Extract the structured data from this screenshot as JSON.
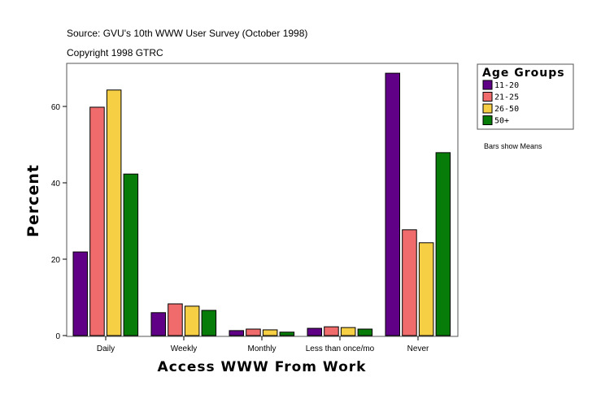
{
  "chart_data": {
    "type": "bar",
    "title": "Source: GVU's 10th WWW User Survey (October 1998)",
    "subtitle": "Copyright 1998 GTRC",
    "xlabel": "Access WWW From Work",
    "ylabel": "Percent",
    "ylim": [
      0,
      71
    ],
    "yticks": [
      0,
      20,
      40,
      60
    ],
    "grid": false,
    "legend_placement": "right",
    "legend_title": "Age Groups",
    "note": "Bars show Means",
    "categories": [
      "Daily",
      "Weekly",
      "Monthly",
      "Less than once/mo",
      "Never"
    ],
    "series": [
      {
        "name": "11-20",
        "color": "#5f0087",
        "values": [
          21.9,
          6.0,
          1.3,
          1.9,
          68.7
        ]
      },
      {
        "name": "21-25",
        "color": "#f06c6c",
        "values": [
          59.8,
          8.3,
          1.7,
          2.3,
          27.7
        ]
      },
      {
        "name": "26-50",
        "color": "#f7cf45",
        "values": [
          64.3,
          7.7,
          1.5,
          2.1,
          24.3
        ]
      },
      {
        "name": "50+",
        "color": "#087c08",
        "values": [
          42.3,
          6.6,
          0.9,
          1.7,
          47.9
        ]
      }
    ]
  }
}
